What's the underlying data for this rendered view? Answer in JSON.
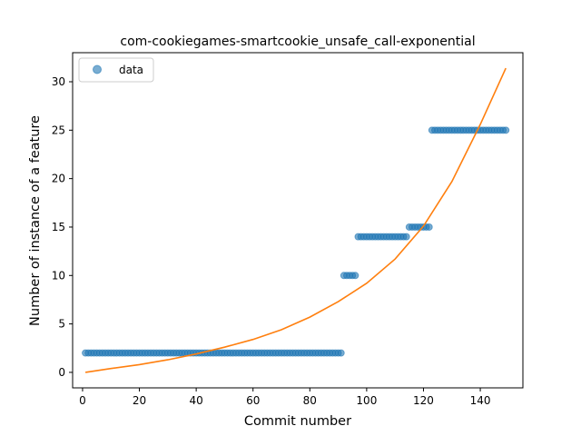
{
  "chart_data": {
    "type": "scatter",
    "title": "com-cookiegames-smartcookie_unsafe_call-exponential",
    "xlabel": "Commit number",
    "ylabel": "Number of instance of a feature",
    "xlim": [
      -3.5,
      155
    ],
    "ylim": [
      -1.6,
      33
    ],
    "xticks": [
      0,
      20,
      40,
      60,
      80,
      100,
      120,
      140
    ],
    "yticks": [
      0,
      5,
      10,
      15,
      20,
      25,
      30
    ],
    "grid": false,
    "legend": {
      "position": "top-left",
      "entries": [
        "data"
      ]
    },
    "series": [
      {
        "name": "data",
        "kind": "scatter",
        "color": "#1f77b4",
        "segments": [
          {
            "x_from": 1,
            "x_to": 91,
            "y": 2
          },
          {
            "x_from": 92,
            "x_to": 96,
            "y": 10
          },
          {
            "x_from": 97,
            "x_to": 114,
            "y": 14
          },
          {
            "x_from": 115,
            "x_to": 122,
            "y": 15
          },
          {
            "x_from": 123,
            "x_to": 149,
            "y": 25
          }
        ]
      },
      {
        "kind": "line",
        "color": "#ff7f0e",
        "points": [
          [
            1,
            0.0
          ],
          [
            10,
            0.4
          ],
          [
            20,
            0.8
          ],
          [
            30,
            1.3
          ],
          [
            40,
            1.9
          ],
          [
            50,
            2.6
          ],
          [
            60,
            3.4
          ],
          [
            70,
            4.4
          ],
          [
            80,
            5.7
          ],
          [
            90,
            7.3
          ],
          [
            100,
            9.2
          ],
          [
            110,
            11.7
          ],
          [
            120,
            15.1
          ],
          [
            130,
            19.7
          ],
          [
            140,
            25.6
          ],
          [
            149,
            31.4
          ]
        ]
      }
    ]
  }
}
